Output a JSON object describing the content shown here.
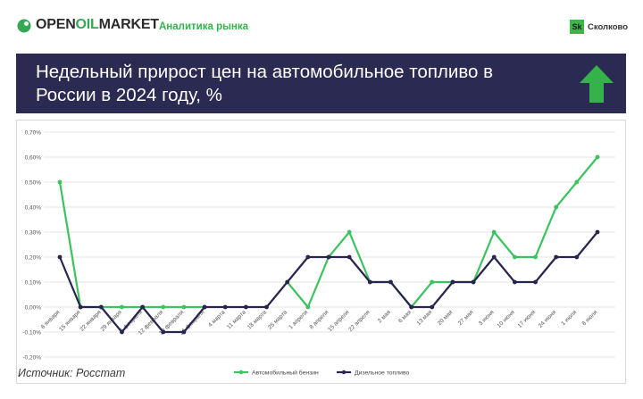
{
  "header": {
    "logo": {
      "part1": "OPEN",
      "part2": "OIL",
      "part3": "MARKET"
    },
    "tagline": "Аналитика рынка",
    "sk_mark": "Sk",
    "sk_label": "Сколково"
  },
  "banner": {
    "title": "Недельный прирост цен на автомобильное топливо в России в 2024 году, %",
    "arrow_icon": "arrow-up-icon",
    "arrow_color": "#35b24a"
  },
  "source": "Источник: Росстат",
  "chart_data": {
    "type": "line",
    "categories": [
      "8 января",
      "15 января",
      "22 января",
      "29 января",
      "5 февраля",
      "12 февраля",
      "19 февраля",
      "26 февраля",
      "4 марта",
      "11 марта",
      "18 марта",
      "25 марта",
      "1 апреля",
      "8 апреля",
      "15 апреля",
      "22 апреля",
      "2 мая",
      "6 мая",
      "13 мая",
      "20 мая",
      "27 мая",
      "3 июня",
      "10 июня",
      "17 июня",
      "24 июня",
      "1 июля",
      "8 июля"
    ],
    "series": [
      {
        "name": "Автомобильный бензин",
        "color": "#3cc25f",
        "values": [
          0.5,
          0,
          0,
          0,
          0,
          0,
          0,
          0,
          null,
          null,
          null,
          0.1,
          0,
          0.2,
          0.3,
          0.1,
          0.1,
          0,
          0.1,
          0.1,
          0.1,
          0.3,
          0.2,
          0.2,
          0.4,
          0.5,
          0.6
        ]
      },
      {
        "name": "Дизельное топливо",
        "color": "#27244f",
        "values": [
          0.2,
          0,
          0,
          -0.1,
          0,
          -0.1,
          -0.1,
          0,
          0,
          0,
          0,
          0.1,
          0.2,
          0.2,
          0.2,
          0.1,
          0.1,
          0,
          0,
          0.1,
          0.1,
          0.2,
          0.1,
          0.1,
          0.2,
          0.2,
          0.3
        ]
      }
    ],
    "yticks": [
      "0,70%",
      "0,60%",
      "0,50%",
      "0,40%",
      "0,30%",
      "0,20%",
      "0,10%",
      "0,00%",
      "-0,10%",
      "-0,20%"
    ],
    "ylim": [
      -0.2,
      0.7
    ],
    "grid": true,
    "legend": "bottom"
  }
}
